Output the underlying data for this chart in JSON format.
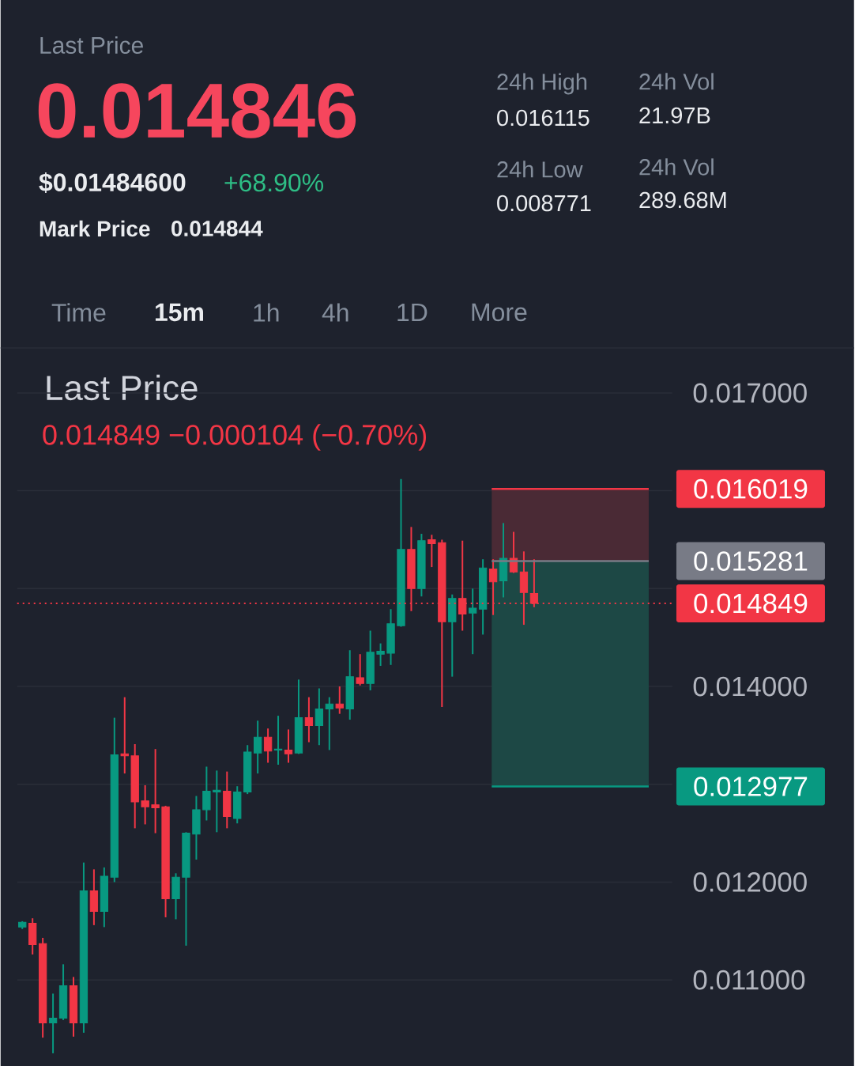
{
  "chart_data": {
    "type": "candlestick",
    "title": "Last Price",
    "subtitle": "0.014849  −0.000104 (−0.70%)",
    "annotations": [
      "Last Price",
      "0.014846",
      "$0.01484600",
      "+68.90%",
      "Mark Price",
      "0.014844",
      "24h High",
      "0.016115",
      "24h Low",
      "0.008771",
      "24h Vol",
      "21.97B",
      "24h Vol",
      "289.68M",
      "Time",
      "15m",
      "1h",
      "4h",
      "1D",
      "More"
    ],
    "categories": [
      null,
      null,
      null,
      null,
      null,
      null,
      null,
      null,
      null,
      null,
      null,
      null,
      null,
      null,
      null,
      null,
      null,
      null,
      null,
      null,
      null,
      null,
      null,
      null,
      null,
      null,
      null,
      null,
      null,
      null,
      null,
      null,
      null,
      null,
      null,
      null,
      null,
      null,
      null,
      null,
      null,
      null,
      null,
      null,
      null,
      null,
      null,
      null,
      null,
      null,
      null,
      null,
      null,
      null,
      null,
      null,
      null,
      null,
      null,
      null,
      null,
      null,
      null,
      null
    ],
    "ohlc": [
      [
        0.01154,
        0.0116,
        0.01152,
        0.01159
      ],
      [
        0.01158,
        0.01163,
        0.01126,
        0.01136
      ],
      [
        0.01137,
        0.01143,
        0.01041,
        0.01056
      ],
      [
        0.01056,
        0.01086,
        0.01025,
        0.01061
      ],
      [
        0.01061,
        0.01116,
        0.01059,
        0.01094
      ],
      [
        0.01094,
        0.01103,
        0.01042,
        0.01056
      ],
      [
        0.01056,
        0.0122,
        0.01046,
        0.01191
      ],
      [
        0.01191,
        0.01213,
        0.01156,
        0.0117
      ],
      [
        0.0117,
        0.01215,
        0.01154,
        0.01206
      ],
      [
        0.01205,
        0.01368,
        0.012,
        0.0133
      ],
      [
        0.01331,
        0.01389,
        0.01311,
        0.01329
      ],
      [
        0.01329,
        0.01341,
        0.01255,
        0.01282
      ],
      [
        0.01283,
        0.01299,
        0.01259,
        0.01277
      ],
      [
        0.01279,
        0.01336,
        0.0125,
        0.01276
      ],
      [
        0.01277,
        0.01278,
        0.01164,
        0.01183
      ],
      [
        0.01183,
        0.01209,
        0.01162,
        0.01205
      ],
      [
        0.01205,
        0.01251,
        0.01135,
        0.0125
      ],
      [
        0.01249,
        0.01288,
        0.01223,
        0.01274
      ],
      [
        0.01274,
        0.01318,
        0.01263,
        0.01293
      ],
      [
        0.01292,
        0.01314,
        0.01251,
        0.01294
      ],
      [
        0.01293,
        0.01313,
        0.01255,
        0.01267
      ],
      [
        0.01265,
        0.01298,
        0.0126,
        0.01292
      ],
      [
        0.01292,
        0.0134,
        0.0129,
        0.01333
      ],
      [
        0.01332,
        0.01365,
        0.01311,
        0.01348
      ],
      [
        0.01348,
        0.01357,
        0.01322,
        0.01334
      ],
      [
        0.01335,
        0.0137,
        0.0132,
        0.01336
      ],
      [
        0.01335,
        0.01356,
        0.01322,
        0.01331
      ],
      [
        0.01332,
        0.01407,
        0.01331,
        0.01368
      ],
      [
        0.01368,
        0.01389,
        0.01343,
        0.0136
      ],
      [
        0.0136,
        0.01398,
        0.0134,
        0.01377
      ],
      [
        0.01377,
        0.01389,
        0.01335,
        0.01382
      ],
      [
        0.01382,
        0.014,
        0.01372,
        0.01378
      ],
      [
        0.01377,
        0.01437,
        0.01366,
        0.0141
      ],
      [
        0.01409,
        0.01433,
        0.01401,
        0.01403
      ],
      [
        0.01403,
        0.01457,
        0.01396,
        0.01435
      ],
      [
        0.01433,
        0.01444,
        0.01421,
        0.01436
      ],
      [
        0.01434,
        0.01479,
        0.01422,
        0.01464
      ],
      [
        0.01462,
        0.01612,
        0.01461,
        0.0154
      ],
      [
        0.0154,
        0.01563,
        0.01477,
        0.015
      ],
      [
        0.015,
        0.01556,
        0.01492,
        0.01549
      ],
      [
        0.0155,
        0.01555,
        0.01522,
        0.01546
      ],
      [
        0.01547,
        0.0155,
        0.01379,
        0.01466
      ],
      [
        0.01466,
        0.01494,
        0.0141,
        0.0149
      ],
      [
        0.0149,
        0.01549,
        0.01457,
        0.01474
      ],
      [
        0.01475,
        0.015,
        0.01433,
        0.0148
      ],
      [
        0.01479,
        0.0153,
        0.01453,
        0.01521
      ],
      [
        0.0152,
        0.0153,
        0.01473,
        0.01507
      ],
      [
        0.01508,
        0.01567,
        0.01491,
        0.01531
      ],
      [
        0.01531,
        0.01558,
        0.01516,
        0.01517
      ],
      [
        0.01517,
        0.01538,
        0.01463,
        0.01496
      ],
      [
        0.01495,
        0.0153,
        0.01481,
        0.014849
      ],
      null,
      null,
      null,
      null,
      null,
      null,
      null,
      null,
      null,
      null,
      null,
      null,
      null
    ],
    "colors": [
      "#089981",
      "#f23645",
      "#f23645",
      "#089981",
      "#089981",
      "#f23645",
      "#089981",
      "#f23645",
      "#089981",
      "#089981",
      "#f23645",
      "#f23645",
      "#f23645",
      "#f23645",
      "#f23645",
      "#089981",
      "#089981",
      "#089981",
      "#089981",
      "#089981",
      "#f23645",
      "#089981",
      "#089981",
      "#089981",
      "#f23645",
      "#089981",
      "#f23645",
      "#089981",
      "#f23645",
      "#089981",
      "#089981",
      "#f23645",
      "#089981",
      "#f23645",
      "#089981",
      "#089981",
      "#089981",
      "#089981",
      "#f23645",
      "#089981",
      "#f23645",
      "#f23645",
      "#089981",
      "#f23645",
      "#089981",
      "#089981",
      "#f23645",
      "#089981",
      "#f23645",
      "#f23645",
      "#f23645",
      null,
      null,
      null,
      null,
      null,
      null,
      null,
      null,
      null,
      null,
      null,
      null,
      null
    ],
    "ylim": [
      0.01012,
      0.01746
    ],
    "yticks": [
      {
        "value": 0.011,
        "label": "0.011000"
      },
      {
        "value": 0.012,
        "label": "0.012000"
      },
      {
        "value": 0.013,
        "label": null
      },
      {
        "value": 0.014,
        "label": "0.014000"
      },
      {
        "value": 0.015,
        "label": null
      },
      {
        "value": 0.016,
        "label": null
      },
      {
        "value": 0.017,
        "label": "0.017000"
      }
    ],
    "grid": "y",
    "tick_labels": "y",
    "bands": [
      {
        "axis": "y",
        "from": 0.015281,
        "to": 0.016019,
        "color": "#4a2a35"
      },
      {
        "axis": "y",
        "from": 0.012977,
        "to": 0.015281,
        "color": "#1d4845"
      }
    ],
    "ref_lines": [
      {
        "axis": "y",
        "value": 0.016019,
        "label": "0.016019",
        "color": "#f23645",
        "line_style": "solid"
      },
      {
        "axis": "y",
        "value": 0.015281,
        "label": "0.015281",
        "color": "#787b86",
        "line_style": "solid"
      },
      {
        "axis": "y",
        "value": 0.014849,
        "label": "0.014849",
        "color": "#f23645",
        "line_style": "dotted"
      },
      {
        "axis": "y",
        "value": 0.012977,
        "label": "0.012977",
        "color": "#089981",
        "line_style": "solid"
      }
    ]
  }
}
